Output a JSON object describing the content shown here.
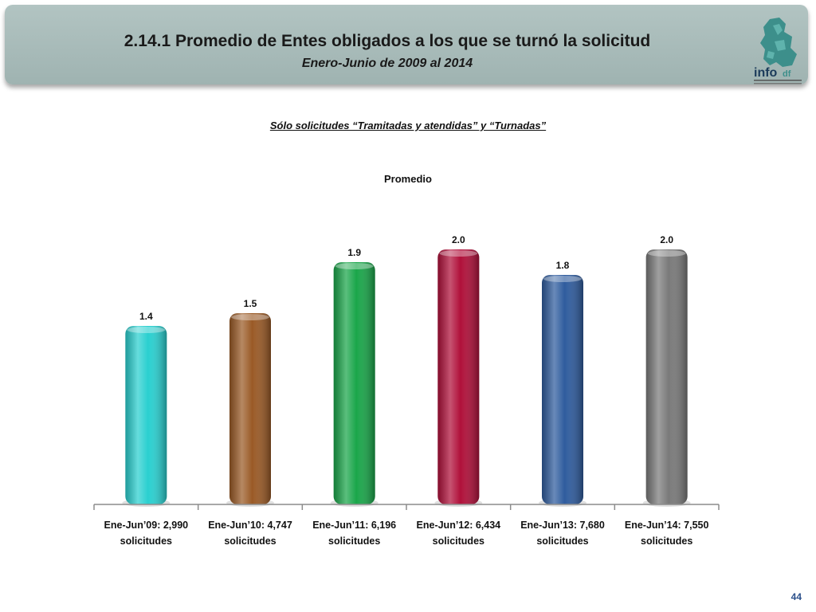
{
  "header": {
    "title": "2.14.1 Promedio de Entes obligados a los que se turnó la solicitud",
    "subtitle": "Enero-Junio de 2009 al 2014",
    "logo": {
      "wordmark": "info",
      "suffix": "df",
      "colors": {
        "map": "#3d8f8b",
        "text": "#1b3b5a"
      }
    }
  },
  "filter_note": "Sólo solicitudes “Tramitadas y atendidas” y “Turnadas”",
  "chart_data": {
    "type": "bar",
    "title": "Promedio",
    "xlabel": "",
    "ylabel": "",
    "ylim": [
      0,
      2.2
    ],
    "grid": false,
    "categories": [
      [
        "Ene-Jun’09: 2,990",
        "solicitudes"
      ],
      [
        "Ene-Jun’10: 4,747",
        "solicitudes"
      ],
      [
        "Ene-Jun’11: 6,196",
        "solicitudes"
      ],
      [
        "Ene-Jun’12: 6,434",
        "solicitudes"
      ],
      [
        "Ene-Jun’13: 7,680",
        "solicitudes"
      ],
      [
        "Ene-Jun’14: 7,550",
        "solicitudes"
      ]
    ],
    "values": [
      1.4,
      1.5,
      1.9,
      2.0,
      1.8,
      2.0
    ],
    "value_labels": [
      "1.4",
      "1.5",
      "1.9",
      "2.0",
      "1.8",
      "2.0"
    ],
    "colors": [
      "#2ad0d0",
      "#9a5a26",
      "#1aa64a",
      "#b0103a",
      "#2f5c9e",
      "#7a7a7a"
    ]
  },
  "page_number": "44"
}
